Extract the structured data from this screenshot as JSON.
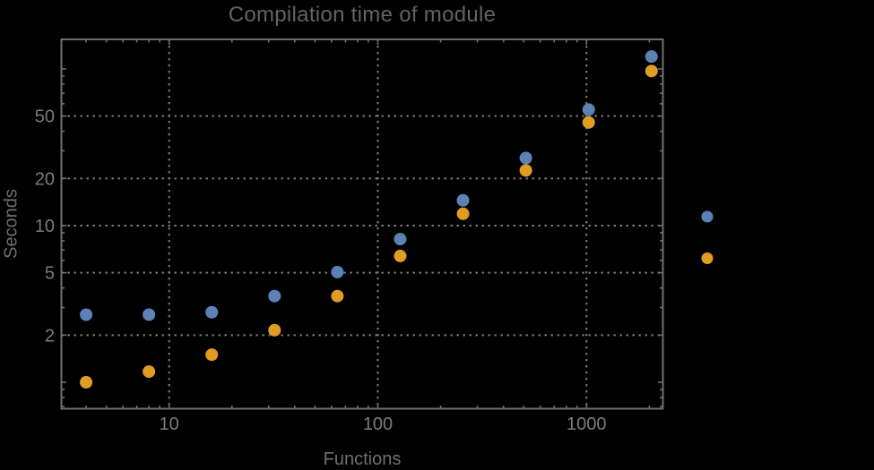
{
  "title": "Compilation time of module",
  "chart_data": {
    "type": "scatter",
    "title": "Compilation time of module",
    "xlabel": "Functions",
    "ylabel": "Seconds",
    "x_scale": "log",
    "y_scale": "log",
    "x": [
      4,
      8,
      16,
      32,
      64,
      128,
      256,
      512,
      1024,
      2048
    ],
    "series": [
      {
        "name": "series-blue",
        "color": "#5e81b5",
        "values": [
          2.7,
          2.7,
          2.8,
          3.55,
          5.05,
          8.2,
          14.5,
          27,
          55,
          120
        ]
      },
      {
        "name": "series-orange",
        "color": "#e19c24",
        "values": [
          1.0,
          1.17,
          1.5,
          2.15,
          3.55,
          6.4,
          11.9,
          22.5,
          45.5,
          97
        ]
      }
    ],
    "x_ticks": [
      10,
      100,
      1000
    ],
    "x_tick_labels": [
      "10",
      "100",
      "1000"
    ],
    "x_minor_ticks": [
      4,
      5,
      6,
      7,
      8,
      9,
      20,
      30,
      40,
      50,
      60,
      70,
      80,
      90,
      200,
      300,
      400,
      500,
      600,
      700,
      800,
      900,
      2000
    ],
    "y_ticks": [
      2,
      5,
      10,
      20,
      50
    ],
    "y_tick_labels": [
      "2",
      "5",
      "10",
      "20",
      "50"
    ],
    "y_minor_ticks": [
      0.7,
      0.8,
      0.9,
      1,
      3,
      4,
      6,
      7,
      8,
      9,
      30,
      40,
      60,
      70,
      80,
      90,
      100
    ],
    "xlim": [
      3.05,
      2320
    ],
    "ylim": [
      0.67,
      156
    ],
    "grid": "major-dotted",
    "legend": {
      "position": "outside-right",
      "items": [
        {
          "label": "",
          "color": "#5e81b5"
        },
        {
          "label": "",
          "color": "#e19c24"
        }
      ]
    }
  },
  "colors": {
    "background": "#000000",
    "frame": "#6f6f6f",
    "grid": "#7e7e7e",
    "tick_text": "#7b7b7b",
    "title_text": "#636363",
    "axis_label_text": "#6f6f6f",
    "series_blue": "#5e81b5",
    "series_orange": "#e19c24"
  }
}
